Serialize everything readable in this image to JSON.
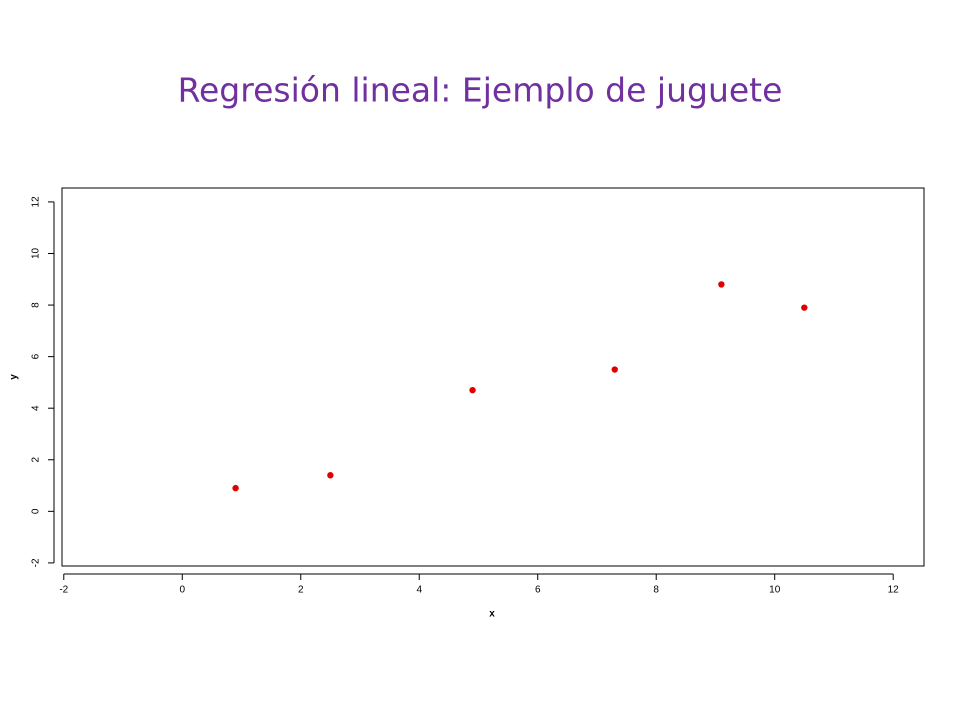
{
  "chart_data": {
    "type": "scatter",
    "title": "Regresión lineal: Ejemplo de juguete",
    "x_label": "x",
    "y_label": "y",
    "x": [
      0.9,
      2.5,
      4.9,
      7.3,
      9.1,
      10.5
    ],
    "values": [
      0.9,
      1.4,
      4.7,
      5.5,
      8.8,
      7.9
    ],
    "color": "#e00000",
    "xlim": [
      -2.03,
      12.52
    ],
    "ylim": [
      -2.12,
      12.54
    ],
    "xticks": [
      -2,
      0,
      2,
      4,
      6,
      8,
      10,
      12
    ],
    "yticks": [
      -2,
      0,
      2,
      4,
      6,
      8,
      10,
      12
    ],
    "grid": false
  }
}
